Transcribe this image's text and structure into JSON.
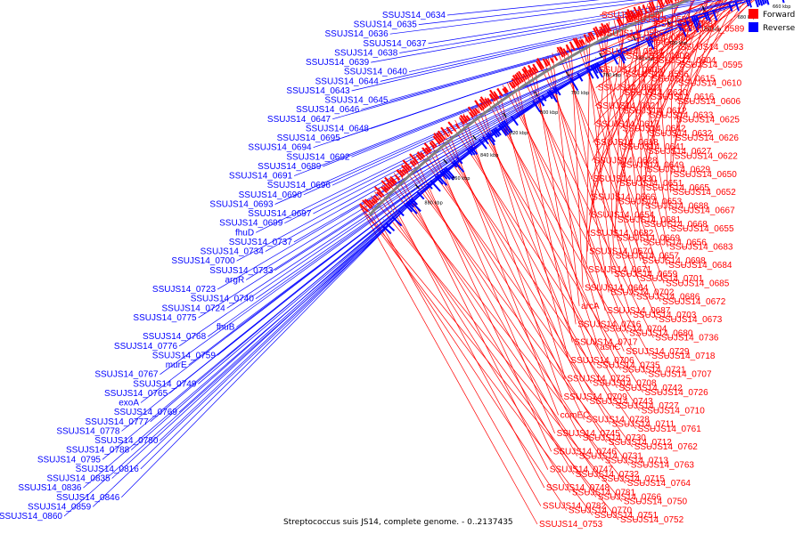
{
  "caption": "Streptococcus suis JS14, complete genome. - 0..2137435",
  "legend": [
    {
      "label": "Forward",
      "color": "#ff0000"
    },
    {
      "label": "Reverse",
      "color": "#0000ff"
    }
  ],
  "colors": {
    "forward": "#ff0000",
    "reverse": "#0000ff",
    "backbone": "#808080"
  },
  "ticks": [
    "620 kbp",
    "640 kbp",
    "660 kbp",
    "680 kbp",
    "700 kbp",
    "720 kbp",
    "740 kbp",
    "760 kbp",
    "780 kbp",
    "800 kbp",
    "820 kbp",
    "840 kbp",
    "860 kbp",
    "880 kbp"
  ],
  "forward_labels": [
    "SSUJS14_0581",
    "SSUJS14_0584",
    "SSUJS14_0587",
    "SSUJS14_0589",
    "SSUJS14_0586",
    "SSUJS14_0588",
    "tetO",
    "SSUJS14_0593",
    "SSUJS14_0594",
    "SSUJS14_0603",
    "SSUJS14_0604",
    "SSUJS14_0595",
    "SSUJS14_0605",
    "SSUJS14_0596",
    "SSUJS14_0615",
    "SSUJS14_0610",
    "SSUJS14_0601",
    "SSUJS14_0620",
    "SSUJS14_0616",
    "SSUJS14_0606",
    "SSUJS14_0621",
    "SSUJS14_0612",
    "SSUJS14_0633",
    "SSUJS14_0625",
    "SSUJS14_0617",
    "SSUJS14_0642",
    "SSUJS14_0632",
    "SSUJS14_0626",
    "SSUJS14_0618",
    "SSUJS14_0641",
    "SSUJS14_0627",
    "SSUJS14_0622",
    "SSUJS14_0628",
    "SSUJS14_0649",
    "SSUJS14_0629",
    "SSUJS14_0650",
    "SSUJS14_0630",
    "SSUJS14_0651",
    "SSUJS14_0665",
    "SSUJS14_0652",
    "SSUJS14_0666",
    "SSUJS14_0653",
    "SSUJS14_0688",
    "SSUJS14_0667",
    "SSUJS14_0654",
    "SSUJS14_0681",
    "SSUJS14_0668",
    "SSUJS14_0655",
    "SSUJS14_0682",
    "SSUJS14_0669",
    "SSUJS14_0656",
    "SSUJS14_0683",
    "SSUJS14_0670",
    "SSUJS14_0657",
    "SSUJS14_0698",
    "SSUJS14_0684",
    "SSUJS14_0671",
    "SSUJS14_0659",
    "SSUJS14_0701",
    "SSUJS14_0685",
    "SSUJS14_0664",
    "SSUJS14_0702",
    "SSUJS14_0686",
    "SSUJS14_0672",
    "arcA",
    "SSUJS14_0687",
    "SSUJS14_0703",
    "SSUJS14_0673",
    "SSUJS14_0716",
    "SSUJS14_0704",
    "SSUJS14_0680",
    "SSUJS14_0736",
    "SSUJS14_0717",
    "asnC",
    "SSUJS14_0729",
    "SSUJS14_0718",
    "SSUJS14_0706",
    "SSUJS14_0735",
    "SSUJS14_0721",
    "SSUJS14_0707",
    "SSUJS14_0725",
    "SSUJS14_0708",
    "SSUJS14_0742",
    "SSUJS14_0726",
    "SSUJS14_0709",
    "SSUJS14_0743",
    "SSUJS14_0727",
    "SSUJS14_0710",
    "comEC",
    "SSUJS14_0728",
    "SSUJS14_0711",
    "SSUJS14_0761",
    "SSUJS14_0745",
    "SSUJS14_0730",
    "SSUJS14_0712",
    "SSUJS14_0762",
    "SSUJS14_0746",
    "SSUJS14_0731",
    "SSUJS14_0713",
    "SSUJS14_0763",
    "SSUJS14_0747",
    "SSUJS14_0732",
    "SSUJS14_0715",
    "SSUJS14_0764",
    "SSUJS14_0748",
    "SSUJS14_0781",
    "SSUJS14_0766",
    "SSUJS14_0750",
    "SSUJS14_0782",
    "SSUJS14_0770",
    "SSUJS14_0751",
    "SSUJS14_0752",
    "SSUJS14_0753"
  ],
  "reverse_labels": [
    "SSUJS14_0634",
    "SSUJS14_0635",
    "SSUJS14_0636",
    "SSUJS14_0637",
    "SSUJS14_0638",
    "SSUJS14_0639",
    "SSUJS14_0640",
    "SSUJS14_0644",
    "SSUJS14_0643",
    "SSUJS14_0645",
    "SSUJS14_0646",
    "SSUJS14_0647",
    "SSUJS14_0648",
    "SSUJS14_0695",
    "SSUJS14_0694",
    "SSUJS14_0692",
    "SSUJS14_0689",
    "SSUJS14_0691",
    "SSUJS14_0696",
    "SSUJS14_0690",
    "SSUJS14_0693",
    "SSUJS14_0697",
    "SSUJS14_0699",
    "fhuD",
    "SSUJS14_0737",
    "SSUJS14_0734",
    "SSUJS14_0700",
    "SSUJS14_0733",
    "argR",
    "SSUJS14_0723",
    "SSUJS14_0740",
    "SSUJS14_0724",
    "SSUJS14_0775",
    "fhuB",
    "SSUJS14_0768",
    "SSUJS14_0776",
    "SSUJS14_0759",
    "murE",
    "SSUJS14_0767",
    "SSUJS14_0749",
    "SSUJS14_0765",
    "exoA",
    "SSUJS14_0769",
    "SSUJS14_0777",
    "SSUJS14_0778",
    "SSUJS14_0780",
    "SSUJS14_0788",
    "SSUJS14_0795",
    "SSUJS14_0816",
    "SSUJS14_0835",
    "SSUJS14_0836",
    "SSUJS14_0846",
    "SSUJS14_0859",
    "SSUJS14_0860"
  ]
}
